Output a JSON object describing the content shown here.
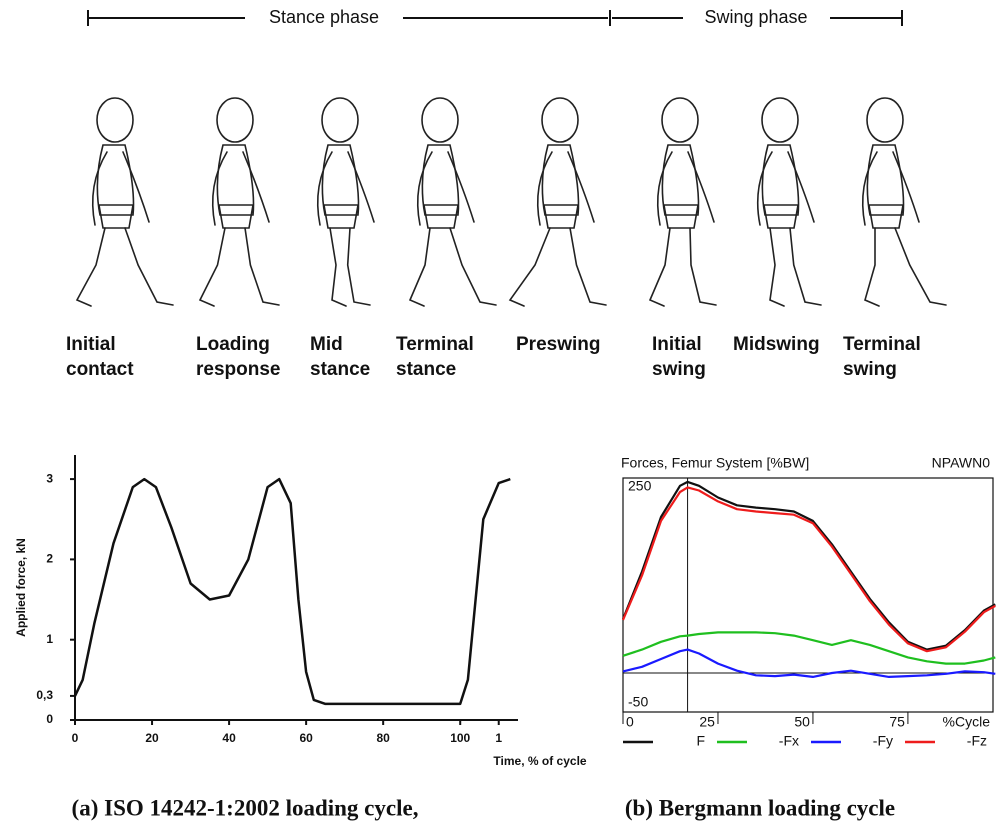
{
  "phases": {
    "stance": "Stance phase",
    "swing": "Swing phase"
  },
  "gait_events": [
    [
      "Initial",
      "contact"
    ],
    [
      "Loading",
      "response"
    ],
    [
      "Mid",
      "stance"
    ],
    [
      "Terminal",
      "stance"
    ],
    [
      "Preswing"
    ],
    [
      "Initial",
      "swing"
    ],
    [
      "Midswing"
    ],
    [
      "Terminal",
      "swing"
    ]
  ],
  "chart_data": [
    {
      "type": "line",
      "y_label": "Applied force, kN",
      "x_label": "Time, % of cycle",
      "x": [
        0,
        2,
        5,
        10,
        15,
        18,
        21,
        25,
        30,
        35,
        40,
        45,
        50,
        53,
        56,
        58,
        60,
        62,
        65,
        100,
        102,
        104,
        106,
        110,
        113
      ],
      "series": [
        {
          "color": "#111111",
          "values": [
            0.3,
            0.5,
            1.2,
            2.2,
            2.9,
            3.0,
            2.9,
            2.4,
            1.7,
            1.5,
            1.55,
            2.0,
            2.9,
            3.0,
            2.7,
            1.5,
            0.6,
            0.25,
            0.2,
            0.2,
            0.5,
            1.5,
            2.5,
            2.95,
            3.0
          ]
        }
      ],
      "xlim": [
        0,
        115
      ],
      "ylim": [
        0,
        3.3
      ],
      "xticks": [
        0,
        20,
        40,
        60,
        80,
        100,
        {
          "value": 110,
          "label": "1"
        }
      ],
      "yticks": [
        0,
        {
          "value": 0.3,
          "label": "0,3"
        },
        1,
        2,
        3
      ]
    },
    {
      "type": "line",
      "title": "Forces, Femur System  [%BW]",
      "subtitle": "NPAWN0",
      "x_label": "%Cycle",
      "x": [
        0,
        5,
        10,
        15,
        17,
        20,
        25,
        30,
        35,
        40,
        45,
        50,
        55,
        60,
        65,
        70,
        75,
        80,
        85,
        90,
        95,
        98
      ],
      "series": [
        {
          "name": "F",
          "color": "#111111",
          "values": [
            69,
            130,
            200,
            240,
            245,
            240,
            225,
            215,
            212,
            210,
            207,
            195,
            165,
            130,
            95,
            65,
            40,
            30,
            35,
            55,
            80,
            88
          ]
        },
        {
          "name": "-Fx",
          "color": "#1fbf1f",
          "values": [
            22,
            30,
            40,
            47,
            48,
            50,
            52,
            52,
            52,
            51,
            48,
            42,
            36,
            42,
            36,
            28,
            20,
            15,
            12,
            12,
            16,
            20
          ]
        },
        {
          "name": "-Fy",
          "color": "#1a1aff",
          "values": [
            2,
            8,
            18,
            28,
            30,
            25,
            12,
            3,
            -3,
            -4,
            -2,
            -5,
            0,
            3,
            -1,
            -5,
            -4,
            -3,
            -1,
            2,
            1,
            -1
          ]
        },
        {
          "name": "-Fz",
          "color": "#ee1c1c",
          "values": [
            68,
            125,
            195,
            232,
            238,
            234,
            220,
            210,
            207,
            205,
            203,
            192,
            162,
            127,
            92,
            62,
            38,
            28,
            33,
            53,
            78,
            86
          ]
        }
      ],
      "xlim": [
        0,
        97.4
      ],
      "ylim": [
        -50,
        250
      ],
      "xticks": [
        0,
        25,
        50,
        75
      ],
      "yticks": [
        250,
        -50
      ],
      "hlines": [
        0
      ],
      "vlines": [
        17
      ]
    }
  ],
  "captions": [
    "(a) ISO 14242-1:2002 loading cycle,",
    "(b) Bergmann loading cycle"
  ]
}
